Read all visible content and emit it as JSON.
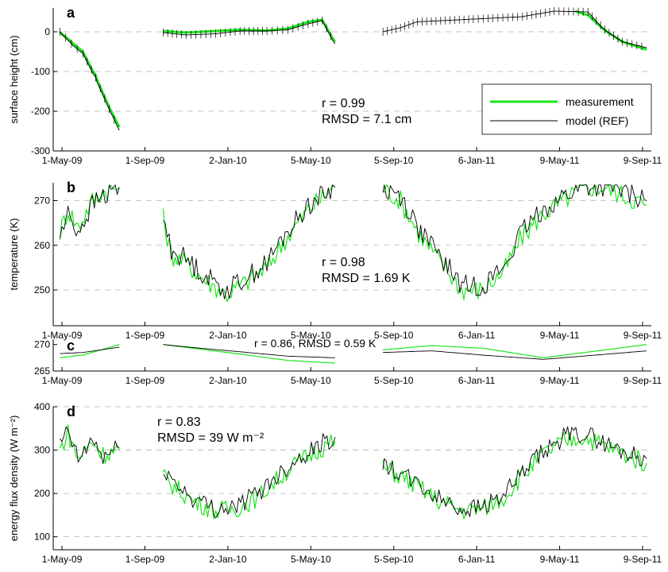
{
  "colors": {
    "measurement": "#19e619",
    "model": "#000000",
    "grid": "#b4b4b4"
  },
  "x_ticks": [
    "1-May-09",
    "1-Sep-09",
    "2-Jan-10",
    "5-May-10",
    "5-Sep-10",
    "6-Jan-11",
    "9-May-11",
    "9-Sep-11"
  ],
  "legend": {
    "measurement": "measurement",
    "model": "model (REF)",
    "placement": "top-right of panel a"
  },
  "chart_data": [
    {
      "type": "line",
      "panel": "a",
      "ylabel": "surface height (cm)",
      "ylim": [
        -300,
        60
      ],
      "yticks": [
        0,
        -100,
        -200,
        -300
      ],
      "grid": "dashed horizontal",
      "annotation": [
        "r = 0.99",
        "RMSD = 7.1 cm"
      ],
      "series": [
        {
          "name": "measurement",
          "segments": [
            [
              [
                "2009-04-28",
                0
              ],
              [
                "2009-05-15",
                -25
              ],
              [
                "2009-06-01",
                -50
              ],
              [
                "2009-06-20",
                -110
              ],
              [
                "2009-07-10",
                -190
              ],
              [
                "2009-07-25",
                -240
              ]
            ],
            [
              [
                "2009-09-28",
                2
              ],
              [
                "2009-11-01",
                -2
              ],
              [
                "2009-12-15",
                2
              ],
              [
                "2010-01-20",
                5
              ],
              [
                "2010-03-01",
                3
              ],
              [
                "2010-04-01",
                8
              ],
              [
                "2010-05-01",
                25
              ],
              [
                "2010-05-22",
                30
              ],
              [
                "2010-06-10",
                -25
              ]
            ],
            [
              [
                "2011-06-01",
                52
              ],
              [
                "2011-06-20",
                42
              ],
              [
                "2011-07-15",
                5
              ],
              [
                "2011-08-10",
                -25
              ],
              [
                "2011-09-15",
                -45
              ]
            ]
          ]
        },
        {
          "name": "model (REF)",
          "segments": [
            [
              [
                "2009-04-28",
                0
              ],
              [
                "2009-05-15",
                -30
              ],
              [
                "2009-06-01",
                -55
              ],
              [
                "2009-06-20",
                -115
              ],
              [
                "2009-07-10",
                -195
              ],
              [
                "2009-07-25",
                -248
              ]
            ],
            [
              [
                "2009-09-28",
                -2
              ],
              [
                "2009-11-01",
                -8
              ],
              [
                "2009-12-15",
                -5
              ],
              [
                "2010-01-20",
                2
              ],
              [
                "2010-03-01",
                2
              ],
              [
                "2010-04-01",
                5
              ],
              [
                "2010-05-01",
                20
              ],
              [
                "2010-05-22",
                28
              ],
              [
                "2010-06-10",
                -30
              ]
            ],
            [
              [
                "2010-08-20",
                0
              ],
              [
                "2010-09-15",
                10
              ],
              [
                "2010-10-10",
                25
              ],
              [
                "2011-01-01",
                32
              ],
              [
                "2011-03-15",
                38
              ],
              [
                "2011-05-01",
                52
              ],
              [
                "2011-06-20",
                50
              ],
              [
                "2011-07-15",
                5
              ],
              [
                "2011-08-10",
                -25
              ],
              [
                "2011-09-15",
                -40
              ]
            ]
          ]
        }
      ]
    },
    {
      "type": "line",
      "panel": "b",
      "ylabel": "temperature (K)",
      "ylim": [
        242,
        274
      ],
      "yticks": [
        250,
        260,
        270
      ],
      "grid": "dashed horizontal",
      "annotation": [
        "r = 0.98",
        "RMSD = 1.69 K"
      ],
      "series": [
        {
          "name": "measurement",
          "segments": [
            [
              [
                "2009-04-28",
                263
              ],
              [
                "2009-05-10",
                268
              ],
              [
                "2009-05-25",
                264
              ],
              [
                "2009-06-15",
                270
              ],
              [
                "2009-07-01",
                272
              ],
              [
                "2009-07-25",
                273
              ]
            ],
            [
              [
                "2009-09-28",
                266
              ],
              [
                "2009-10-10",
                258
              ],
              [
                "2009-11-01",
                256
              ],
              [
                "2009-12-01",
                252
              ],
              [
                "2010-01-01",
                249
              ],
              [
                "2010-02-01",
                252
              ],
              [
                "2010-03-01",
                255
              ],
              [
                "2010-04-01",
                262
              ],
              [
                "2010-05-01",
                268
              ],
              [
                "2010-06-10",
                273
              ]
            ],
            [
              [
                "2010-08-20",
                273
              ],
              [
                "2010-09-15",
                270
              ],
              [
                "2010-10-15",
                262
              ],
              [
                "2010-11-15",
                256
              ],
              [
                "2010-12-15",
                250
              ],
              [
                "2011-01-15",
                250
              ],
              [
                "2011-02-15",
                254
              ],
              [
                "2011-03-15",
                262
              ],
              [
                "2011-04-15",
                267
              ],
              [
                "2011-05-15",
                270
              ],
              [
                "2011-06-15",
                273
              ],
              [
                "2011-07-15",
                273
              ],
              [
                "2011-08-15",
                271
              ],
              [
                "2011-09-15",
                269
              ]
            ]
          ]
        },
        {
          "name": "model (REF)",
          "segments": [
            [
              [
                "2009-04-28",
                262
              ],
              [
                "2009-05-10",
                267
              ],
              [
                "2009-05-25",
                263
              ],
              [
                "2009-06-15",
                269
              ],
              [
                "2009-07-01",
                271
              ],
              [
                "2009-07-25",
                273
              ]
            ],
            [
              [
                "2009-09-28",
                266
              ],
              [
                "2009-10-10",
                259
              ],
              [
                "2009-11-01",
                257
              ],
              [
                "2009-12-01",
                253
              ],
              [
                "2010-01-01",
                250
              ],
              [
                "2010-02-01",
                253
              ],
              [
                "2010-03-01",
                256
              ],
              [
                "2010-04-01",
                263
              ],
              [
                "2010-05-01",
                269
              ],
              [
                "2010-06-10",
                273
              ]
            ],
            [
              [
                "2010-08-20",
                273
              ],
              [
                "2010-09-15",
                271
              ],
              [
                "2010-10-15",
                263
              ],
              [
                "2010-11-15",
                257
              ],
              [
                "2010-12-15",
                251
              ],
              [
                "2011-01-15",
                251
              ],
              [
                "2011-02-15",
                255
              ],
              [
                "2011-03-15",
                263
              ],
              [
                "2011-04-15",
                268
              ],
              [
                "2011-05-15",
                271
              ],
              [
                "2011-06-15",
                273
              ],
              [
                "2011-07-15",
                273
              ],
              [
                "2011-08-15",
                272
              ],
              [
                "2011-09-15",
                270
              ]
            ]
          ]
        }
      ]
    },
    {
      "type": "line",
      "panel": "c",
      "ylim": [
        265,
        271
      ],
      "yticks": [
        265,
        270
      ],
      "annotation": [
        "r = 0.86, RMSD = 0.59 K"
      ],
      "series": [
        {
          "name": "measurement",
          "segments": [
            [
              [
                "2009-04-28",
                267.5
              ],
              [
                "2009-06-01",
                268
              ],
              [
                "2009-07-25",
                270
              ]
            ],
            [
              [
                "2009-09-28",
                270
              ],
              [
                "2009-12-01",
                269
              ],
              [
                "2010-02-01",
                268
              ],
              [
                "2010-04-01",
                267
              ],
              [
                "2010-06-10",
                266.5
              ]
            ],
            [
              [
                "2010-08-20",
                269
              ],
              [
                "2010-11-01",
                269.8
              ],
              [
                "2011-01-15",
                269.3
              ],
              [
                "2011-04-15",
                267.5
              ],
              [
                "2011-09-15",
                270
              ]
            ]
          ]
        },
        {
          "name": "model (REF)",
          "segments": [
            [
              [
                "2009-04-28",
                268.3
              ],
              [
                "2009-06-01",
                268.5
              ],
              [
                "2009-07-25",
                269.5
              ]
            ],
            [
              [
                "2009-09-28",
                270
              ],
              [
                "2009-12-01",
                269.2
              ],
              [
                "2010-02-01",
                268.5
              ],
              [
                "2010-04-01",
                267.8
              ],
              [
                "2010-06-10",
                267.5
              ]
            ],
            [
              [
                "2010-08-20",
                268.5
              ],
              [
                "2010-11-01",
                268.8
              ],
              [
                "2011-01-15",
                268
              ],
              [
                "2011-04-15",
                267.2
              ],
              [
                "2011-09-15",
                268.8
              ]
            ]
          ]
        }
      ]
    },
    {
      "type": "line",
      "panel": "d",
      "ylabel": "energy flux density (W m⁻²)",
      "ylim": [
        70,
        400
      ],
      "yticks": [
        100,
        200,
        300,
        400
      ],
      "grid": "dashed horizontal",
      "annotation": [
        "r = 0.83",
        "RMSD = 39 W m⁻²"
      ],
      "series": [
        {
          "name": "measurement",
          "segments": [
            [
              [
                "2009-04-28",
                300
              ],
              [
                "2009-05-10",
                340
              ],
              [
                "2009-05-25",
                280
              ],
              [
                "2009-06-15",
                320
              ],
              [
                "2009-07-01",
                290
              ],
              [
                "2009-07-25",
                300
              ]
            ],
            [
              [
                "2009-09-28",
                240
              ],
              [
                "2009-10-15",
                215
              ],
              [
                "2009-11-15",
                180
              ],
              [
                "2009-12-15",
                160
              ],
              [
                "2010-01-15",
                165
              ],
              [
                "2010-02-15",
                190
              ],
              [
                "2010-03-15",
                230
              ],
              [
                "2010-04-15",
                270
              ],
              [
                "2010-05-15",
                300
              ],
              [
                "2010-06-10",
                320
              ]
            ],
            [
              [
                "2010-08-20",
                260
              ],
              [
                "2010-09-15",
                240
              ],
              [
                "2010-10-15",
                210
              ],
              [
                "2010-11-15",
                180
              ],
              [
                "2010-12-15",
                160
              ],
              [
                "2011-01-15",
                165
              ],
              [
                "2011-02-15",
                190
              ],
              [
                "2011-03-15",
                240
              ],
              [
                "2011-04-15",
                290
              ],
              [
                "2011-05-15",
                320
              ],
              [
                "2011-06-15",
                330
              ],
              [
                "2011-07-15",
                310
              ],
              [
                "2011-08-15",
                290
              ],
              [
                "2011-09-15",
                270
              ]
            ]
          ]
        },
        {
          "name": "model (REF)",
          "segments": [
            [
              [
                "2009-04-28",
                310
              ],
              [
                "2009-05-10",
                345
              ],
              [
                "2009-05-25",
                275
              ],
              [
                "2009-06-15",
                325
              ],
              [
                "2009-07-01",
                285
              ],
              [
                "2009-07-25",
                305
              ]
            ],
            [
              [
                "2009-09-28",
                260
              ],
              [
                "2009-10-15",
                225
              ],
              [
                "2009-11-15",
                185
              ],
              [
                "2009-12-15",
                165
              ],
              [
                "2010-01-15",
                170
              ],
              [
                "2010-02-15",
                200
              ],
              [
                "2010-03-15",
                240
              ],
              [
                "2010-04-15",
                280
              ],
              [
                "2010-05-15",
                310
              ],
              [
                "2010-06-10",
                330
              ]
            ],
            [
              [
                "2010-08-20",
                265
              ],
              [
                "2010-09-15",
                245
              ],
              [
                "2010-10-15",
                215
              ],
              [
                "2010-11-15",
                185
              ],
              [
                "2010-12-15",
                165
              ],
              [
                "2011-01-15",
                170
              ],
              [
                "2011-02-15",
                195
              ],
              [
                "2011-03-15",
                245
              ],
              [
                "2011-04-15",
                295
              ],
              [
                "2011-05-15",
                330
              ],
              [
                "2011-06-15",
                340
              ],
              [
                "2011-07-15",
                315
              ],
              [
                "2011-08-15",
                295
              ],
              [
                "2011-09-15",
                280
              ]
            ]
          ]
        }
      ]
    }
  ]
}
